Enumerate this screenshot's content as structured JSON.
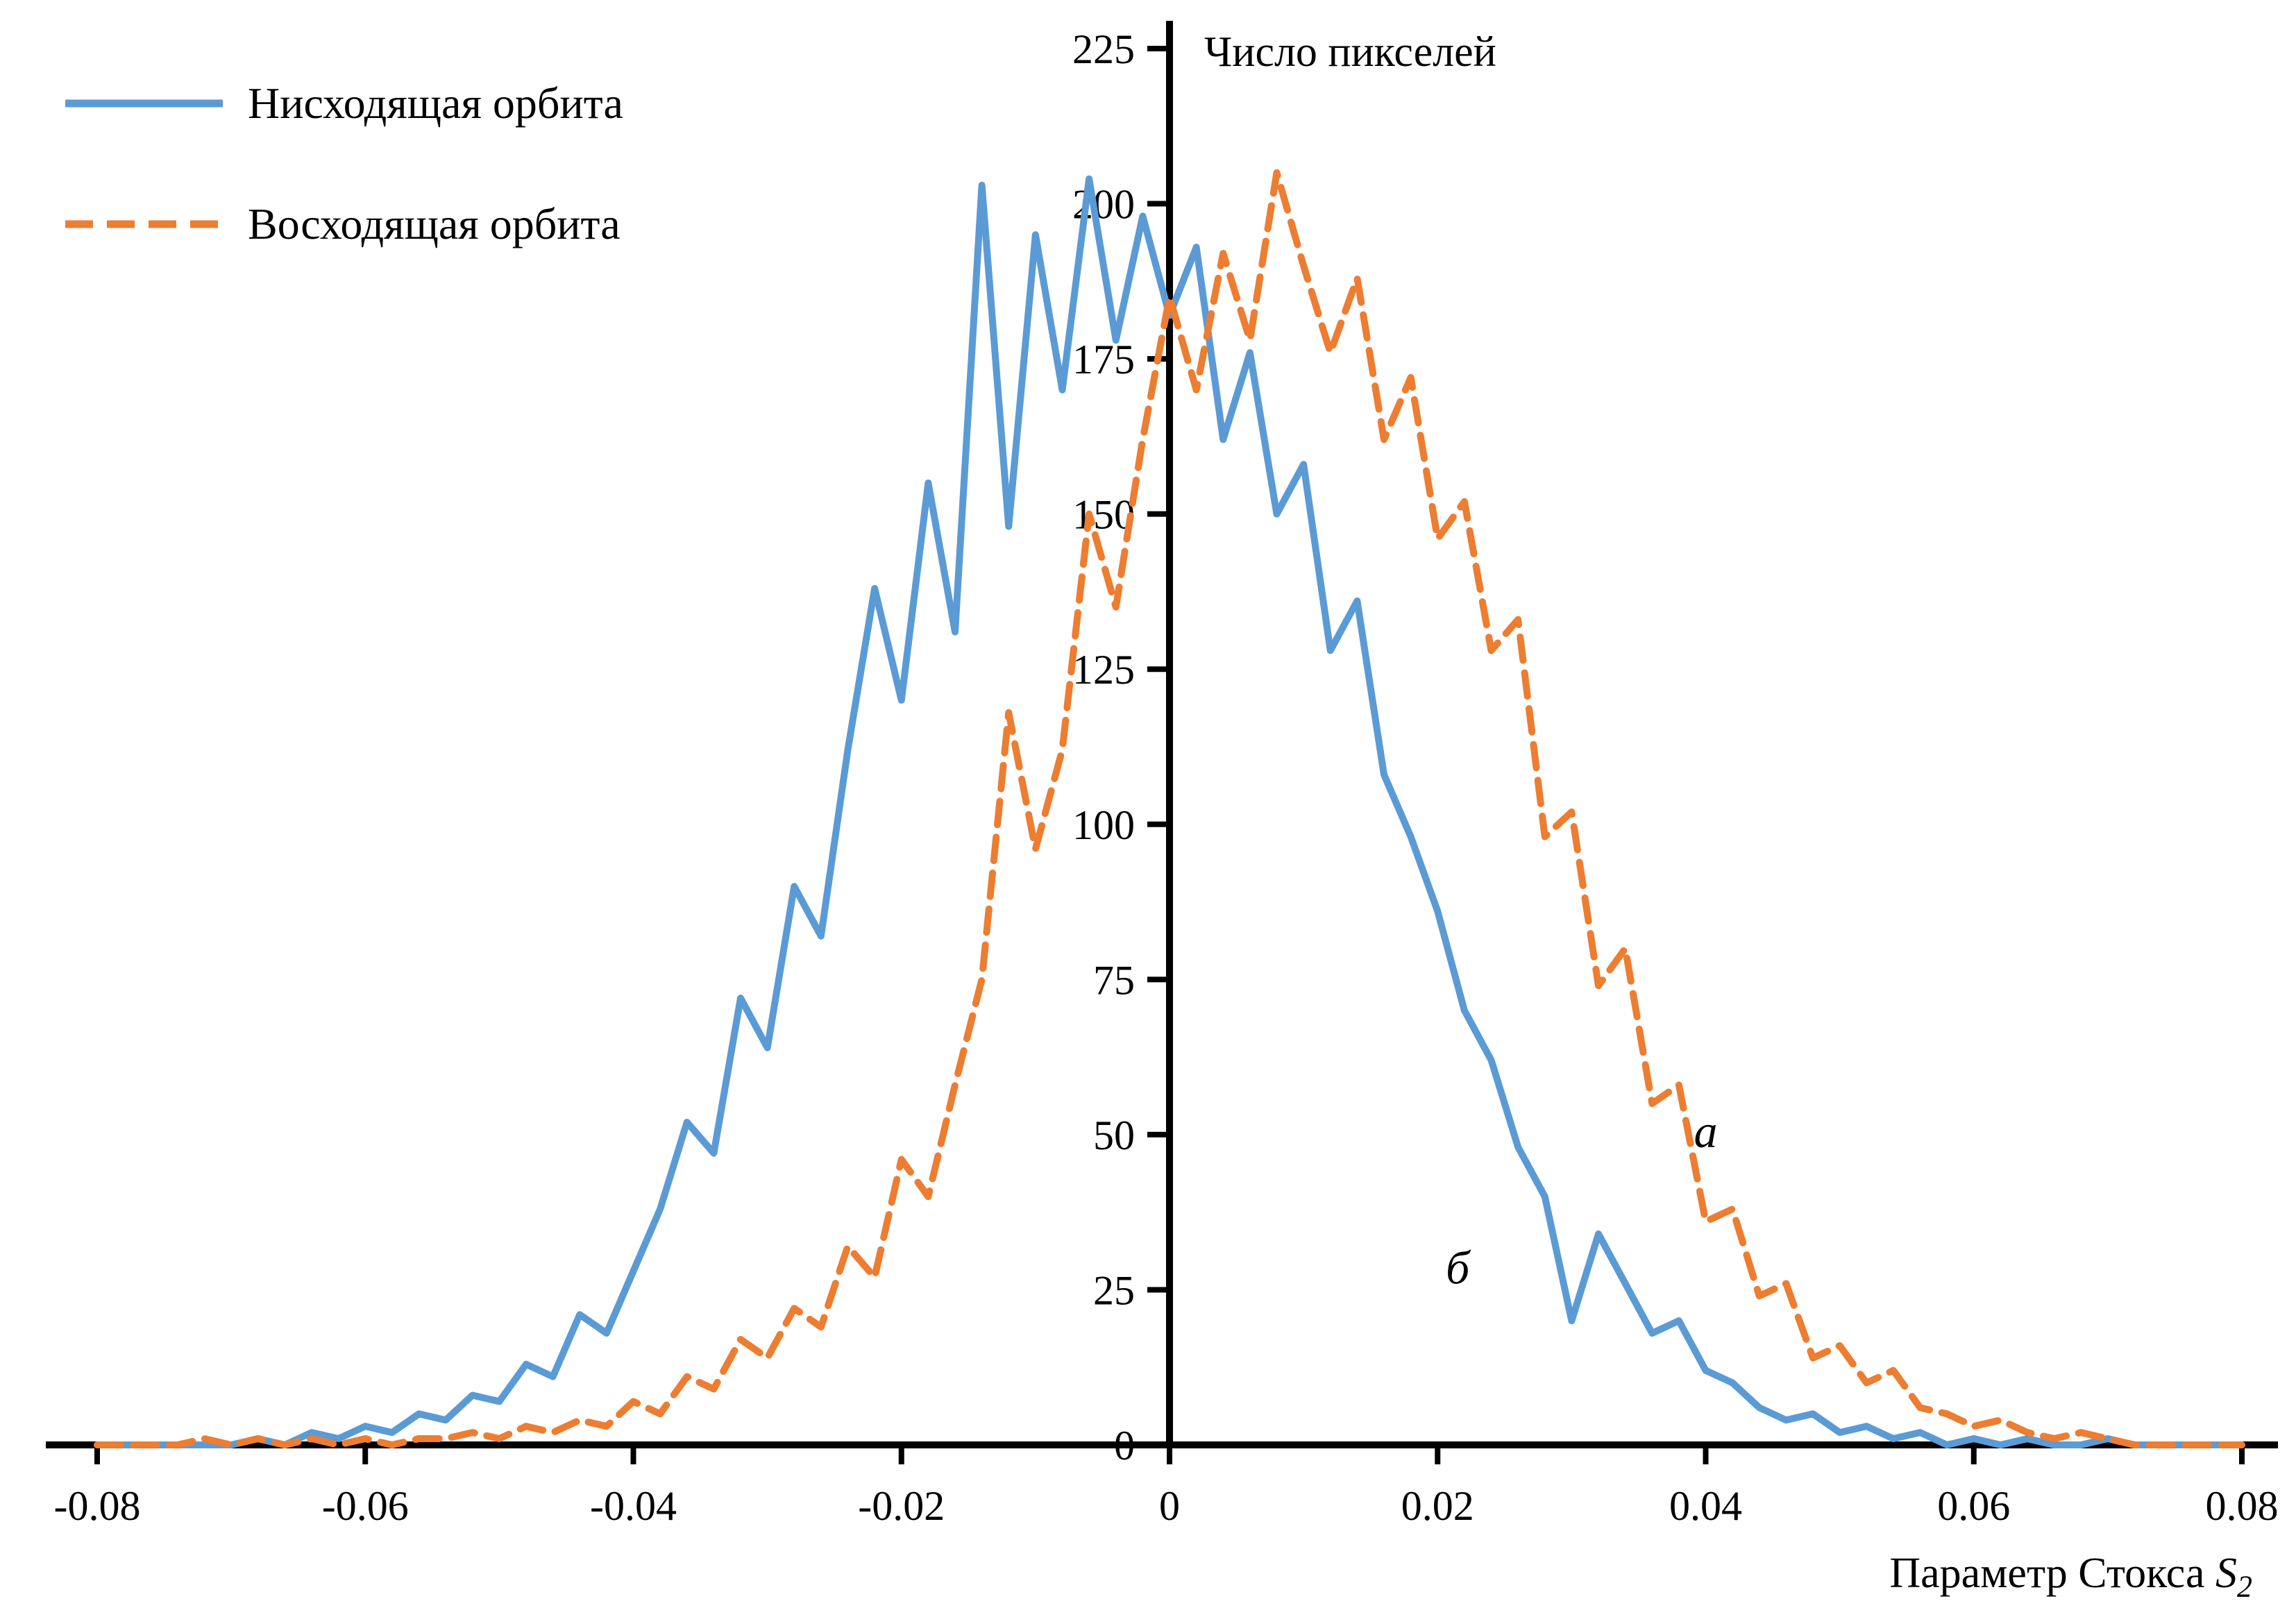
{
  "figure": {
    "background": "#FFFFFF"
  },
  "labels": {
    "y_title": "Число пикселей",
    "x_title_prefix": "Параметр Стокса",
    "x_title_symbol": "S",
    "x_title_subscript": "2"
  },
  "legend": {
    "position": "top-left",
    "items": [
      {
        "label": "Нисходящая орбита",
        "color": "#5B9BD5",
        "style": "solid"
      },
      {
        "label": "Восходящая орбита",
        "color": "#ED7D31",
        "style": "dashed"
      }
    ]
  },
  "chart_data": {
    "type": "line",
    "title": "",
    "ylabel": "Число пикселей",
    "xlabel": "Параметр Стокса S2",
    "x_range": [
      -0.08,
      0.08
    ],
    "y_range": [
      0,
      225
    ],
    "grid": false,
    "legend_position": "top-left",
    "x_ticks": [
      -0.08,
      -0.06,
      -0.04,
      -0.02,
      0,
      0.02,
      0.04,
      0.06,
      0.08
    ],
    "x_tick_labels": [
      "-0.08",
      "-0.06",
      "-0.04",
      "-0.02",
      "0",
      "0.02",
      "0.04",
      "0.06",
      "0.08"
    ],
    "y_ticks": [
      0,
      25,
      50,
      75,
      100,
      125,
      150,
      175,
      200,
      225
    ],
    "x_start": -0.08,
    "x_step": 0.002,
    "series": [
      {
        "name": "Нисходящая орбита",
        "color": "#5B9BD5",
        "style": "solid",
        "values": [
          0,
          0,
          0,
          0,
          0,
          0,
          1,
          0,
          2,
          1,
          3,
          2,
          5,
          4,
          8,
          7,
          13,
          11,
          21,
          18,
          28,
          38,
          52,
          47,
          72,
          64,
          90,
          82,
          112,
          138,
          120,
          155,
          131,
          203,
          148,
          195,
          170,
          204,
          178,
          198,
          182,
          193,
          162,
          176,
          150,
          158,
          128,
          136,
          108,
          98,
          86,
          70,
          62,
          48,
          40,
          20,
          34,
          26,
          18,
          20,
          12,
          10,
          6,
          4,
          5,
          2,
          3,
          1,
          2,
          0,
          1,
          0,
          1,
          0,
          0,
          1,
          0,
          0,
          0,
          0,
          0
        ]
      },
      {
        "name": "Восходящая орбита",
        "color": "#ED7D31",
        "style": "dashed",
        "values": [
          0,
          0,
          0,
          0,
          1,
          0,
          1,
          0,
          1,
          0,
          1,
          0,
          1,
          1,
          2,
          1,
          3,
          2,
          4,
          3,
          7,
          5,
          11,
          9,
          17,
          14,
          22,
          19,
          32,
          27,
          46,
          40,
          58,
          75,
          118,
          96,
          112,
          150,
          135,
          162,
          185,
          170,
          192,
          178,
          205,
          190,
          176,
          188,
          162,
          172,
          146,
          152,
          128,
          133,
          98,
          102,
          74,
          80,
          55,
          58,
          36,
          38,
          24,
          26,
          14,
          16,
          10,
          12,
          6,
          5,
          3,
          4,
          2,
          1,
          2,
          1,
          0,
          0,
          0,
          0,
          0
        ]
      }
    ],
    "annotations": [
      {
        "text": "а",
        "x": 0.04,
        "y": 48
      },
      {
        "text": "б",
        "x": 0.0215,
        "y": 26
      }
    ]
  }
}
